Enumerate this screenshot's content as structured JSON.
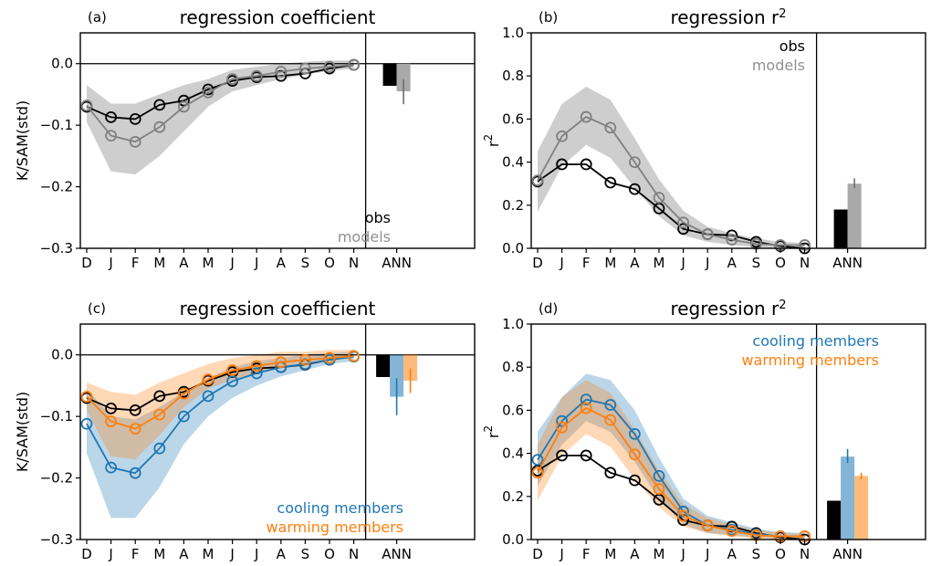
{
  "chart_data": [
    {
      "panel": "(a)",
      "type": "line",
      "title": "regression coefficient",
      "ylabel": "K/SAM(std)",
      "ylim": [
        -0.3,
        0.05
      ],
      "yticks": [
        -0.3,
        -0.2,
        -0.1,
        0.0
      ],
      "ytick_labels": [
        "−0.3",
        "−0.2",
        "−0.1",
        "0.0"
      ],
      "x_labels": [
        "D",
        "J",
        "F",
        "M",
        "A",
        "M",
        "J",
        "J",
        "A",
        "S",
        "O",
        "N"
      ],
      "ann_label": "ANN",
      "zero_line": true,
      "legend_placement": "bottom-right",
      "series": [
        {
          "name": "obs",
          "color": "#000000",
          "values": [
            -0.07,
            -0.087,
            -0.09,
            -0.067,
            -0.06,
            -0.042,
            -0.028,
            -0.022,
            -0.02,
            -0.016,
            -0.008,
            -0.002
          ],
          "ann": -0.036
        },
        {
          "name": "models",
          "color": "#808080",
          "band_color": "#b3b3b3",
          "values": [
            -0.068,
            -0.117,
            -0.127,
            -0.103,
            -0.07,
            -0.047,
            -0.025,
            -0.02,
            -0.013,
            -0.008,
            -0.005,
            -0.002
          ],
          "lower": [
            -0.095,
            -0.175,
            -0.18,
            -0.15,
            -0.11,
            -0.07,
            -0.045,
            -0.035,
            -0.025,
            -0.018,
            -0.012,
            -0.008
          ],
          "upper": [
            -0.035,
            -0.065,
            -0.065,
            -0.05,
            -0.035,
            -0.025,
            -0.01,
            -0.005,
            0.0,
            0.003,
            0.005,
            0.005
          ],
          "ann": -0.045,
          "ann_err": [
            -0.066,
            -0.025
          ]
        }
      ]
    },
    {
      "panel": "(b)",
      "type": "line",
      "title": "regression r",
      "title_sup": "2",
      "ylabel": "r",
      "ylabel_sup": "2",
      "ylim": [
        0.0,
        1.0
      ],
      "yticks": [
        0.0,
        0.2,
        0.4,
        0.6,
        0.8,
        1.0
      ],
      "ytick_labels": [
        "0.0",
        "0.2",
        "0.4",
        "0.6",
        "0.8",
        "1.0"
      ],
      "x_labels": [
        "D",
        "J",
        "F",
        "M",
        "A",
        "M",
        "J",
        "J",
        "A",
        "S",
        "O",
        "N"
      ],
      "ann_label": "ANN",
      "legend_placement": "top-right",
      "series": [
        {
          "name": "obs",
          "color": "#000000",
          "values": [
            0.31,
            0.39,
            0.39,
            0.305,
            0.275,
            0.185,
            0.09,
            0.065,
            0.06,
            0.03,
            0.01,
            0.0
          ],
          "ann": 0.18
        },
        {
          "name": "models",
          "color": "#808080",
          "band_color": "#b3b3b3",
          "values": [
            0.315,
            0.52,
            0.61,
            0.56,
            0.4,
            0.235,
            0.12,
            0.065,
            0.04,
            0.02,
            0.015,
            0.015
          ],
          "lower": [
            0.17,
            0.38,
            0.48,
            0.42,
            0.28,
            0.15,
            0.06,
            0.03,
            0.015,
            0.005,
            0.0,
            0.0
          ],
          "upper": [
            0.45,
            0.67,
            0.75,
            0.69,
            0.51,
            0.32,
            0.175,
            0.1,
            0.07,
            0.045,
            0.03,
            0.025
          ],
          "ann": 0.3,
          "ann_err": [
            0.28,
            0.325
          ]
        }
      ]
    },
    {
      "panel": "(c)",
      "type": "line",
      "title": "regression coefficient",
      "ylabel": "K/SAM(std)",
      "ylim": [
        -0.3,
        0.05
      ],
      "yticks": [
        -0.3,
        -0.2,
        -0.1,
        0.0
      ],
      "ytick_labels": [
        "−0.3",
        "−0.2",
        "−0.1",
        "0.0"
      ],
      "x_labels": [
        "D",
        "J",
        "F",
        "M",
        "A",
        "M",
        "J",
        "J",
        "A",
        "S",
        "O",
        "N"
      ],
      "ann_label": "ANN",
      "zero_line": true,
      "legend_placement": "bottom-right",
      "series": [
        {
          "name": "obs",
          "color": "#000000",
          "values": [
            -0.07,
            -0.087,
            -0.09,
            -0.067,
            -0.06,
            -0.042,
            -0.028,
            -0.022,
            -0.02,
            -0.016,
            -0.008,
            -0.002
          ],
          "ann": -0.036
        },
        {
          "name": "cooling members",
          "color": "#1f77b4",
          "band_color": "#1f77b4",
          "values": [
            -0.112,
            -0.183,
            -0.192,
            -0.152,
            -0.1,
            -0.067,
            -0.043,
            -0.03,
            -0.02,
            -0.015,
            -0.008,
            -0.003
          ],
          "lower": [
            -0.16,
            -0.265,
            -0.265,
            -0.215,
            -0.145,
            -0.1,
            -0.07,
            -0.05,
            -0.035,
            -0.025,
            -0.015,
            -0.01
          ],
          "upper": [
            -0.055,
            -0.1,
            -0.105,
            -0.085,
            -0.06,
            -0.038,
            -0.02,
            -0.01,
            -0.005,
            0.0,
            0.003,
            0.005
          ],
          "ann": -0.068,
          "ann_err": [
            -0.098,
            -0.038
          ]
        },
        {
          "name": "warming members",
          "color": "#ff7f0e",
          "band_color": "#ff7f0e",
          "values": [
            -0.068,
            -0.108,
            -0.12,
            -0.097,
            -0.063,
            -0.04,
            -0.025,
            -0.018,
            -0.012,
            -0.008,
            -0.005,
            -0.002
          ],
          "lower": [
            -0.09,
            -0.165,
            -0.17,
            -0.13,
            -0.085,
            -0.055,
            -0.04,
            -0.03,
            -0.02,
            -0.015,
            -0.01,
            -0.005
          ],
          "upper": [
            -0.045,
            -0.06,
            -0.065,
            -0.045,
            -0.03,
            -0.015,
            -0.005,
            0.0,
            0.005,
            0.005,
            0.008,
            0.008
          ],
          "ann": -0.042,
          "ann_err": [
            -0.062,
            -0.022
          ]
        }
      ]
    },
    {
      "panel": "(d)",
      "type": "line",
      "title": "regression r",
      "title_sup": "2",
      "ylabel": "r",
      "ylabel_sup": "2",
      "ylim": [
        0.0,
        1.0
      ],
      "yticks": [
        0.0,
        0.2,
        0.4,
        0.6,
        0.8,
        1.0
      ],
      "ytick_labels": [
        "0.0",
        "0.2",
        "0.4",
        "0.6",
        "0.8",
        "1.0"
      ],
      "x_labels": [
        "D",
        "J",
        "F",
        "M",
        "A",
        "M",
        "J",
        "J",
        "A",
        "S",
        "O",
        "N"
      ],
      "ann_label": "ANN",
      "legend_placement": "top-right",
      "series": [
        {
          "name": "obs",
          "color": "#000000",
          "values": [
            0.32,
            0.39,
            0.39,
            0.31,
            0.275,
            0.185,
            0.09,
            0.065,
            0.06,
            0.03,
            0.01,
            0.0
          ],
          "ann": 0.18
        },
        {
          "name": "cooling members",
          "color": "#1f77b4",
          "band_color": "#1f77b4",
          "values": [
            0.37,
            0.55,
            0.65,
            0.625,
            0.49,
            0.295,
            0.13,
            0.065,
            0.045,
            0.025,
            0.015,
            0.015
          ],
          "lower": [
            0.25,
            0.44,
            0.55,
            0.5,
            0.36,
            0.19,
            0.07,
            0.03,
            0.02,
            0.01,
            0.005,
            0.005
          ],
          "upper": [
            0.5,
            0.66,
            0.77,
            0.74,
            0.6,
            0.38,
            0.19,
            0.11,
            0.08,
            0.05,
            0.035,
            0.03
          ],
          "ann": 0.385,
          "ann_err": [
            0.355,
            0.42
          ]
        },
        {
          "name": "warming members",
          "color": "#ff7f0e",
          "band_color": "#ff7f0e",
          "values": [
            0.31,
            0.52,
            0.61,
            0.555,
            0.395,
            0.235,
            0.11,
            0.065,
            0.04,
            0.02,
            0.015,
            0.015
          ],
          "lower": [
            0.18,
            0.39,
            0.49,
            0.43,
            0.28,
            0.15,
            0.06,
            0.03,
            0.015,
            0.005,
            0.0,
            0.0
          ],
          "upper": [
            0.44,
            0.66,
            0.74,
            0.68,
            0.51,
            0.32,
            0.165,
            0.1,
            0.07,
            0.045,
            0.03,
            0.025
          ],
          "ann": 0.295,
          "ann_err": [
            0.28,
            0.31
          ]
        }
      ]
    }
  ]
}
